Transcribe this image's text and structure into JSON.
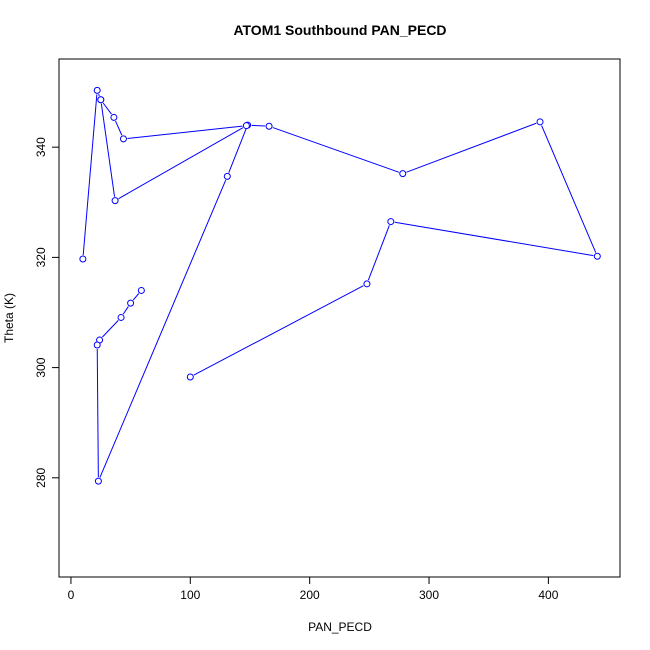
{
  "chart_data": {
    "type": "line",
    "title": "ATOM1 Southbound PAN_PECD",
    "xlabel": "PAN_PECD",
    "ylabel": "Theta (K)",
    "xlim": [
      -10,
      460
    ],
    "ylim": [
      262,
      356
    ],
    "xticks": [
      0,
      100,
      200,
      300,
      400
    ],
    "yticks": [
      280,
      300,
      320,
      340
    ],
    "grid": false,
    "legend": "none",
    "series": [
      {
        "color": "#0000ff",
        "marker": "open-circle",
        "x": [
          59,
          50,
          42,
          24,
          22,
          23,
          131,
          148,
          166,
          278,
          393,
          441,
          268,
          248,
          100
        ],
        "y": [
          314.0,
          311.7,
          309.1,
          305.0,
          304.1,
          279.4,
          334.7,
          344.0,
          343.8,
          335.2,
          344.6,
          320.2,
          326.5,
          315.2,
          298.3
        ]
      },
      {
        "color": "#0000ff",
        "marker": "open-circle",
        "x": [
          10,
          22,
          25,
          36,
          44,
          147,
          37,
          25
        ],
        "y": [
          319.7,
          350.3,
          348.6,
          345.4,
          341.5,
          343.9,
          330.3,
          348.6
        ]
      }
    ]
  }
}
